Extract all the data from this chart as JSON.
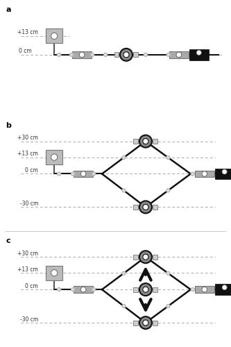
{
  "bg_color": "#ffffff",
  "sep_color": "#cccccc",
  "line_color": "#111111",
  "dash_color": "#aaaaaa",
  "gray_med": "#aaaaaa",
  "gray_dark": "#555555",
  "gray_light": "#cccccc",
  "black": "#111111",
  "panels": [
    "a",
    "b",
    "c"
  ],
  "figsize": [
    3.33,
    5.0
  ],
  "dpi": 100
}
